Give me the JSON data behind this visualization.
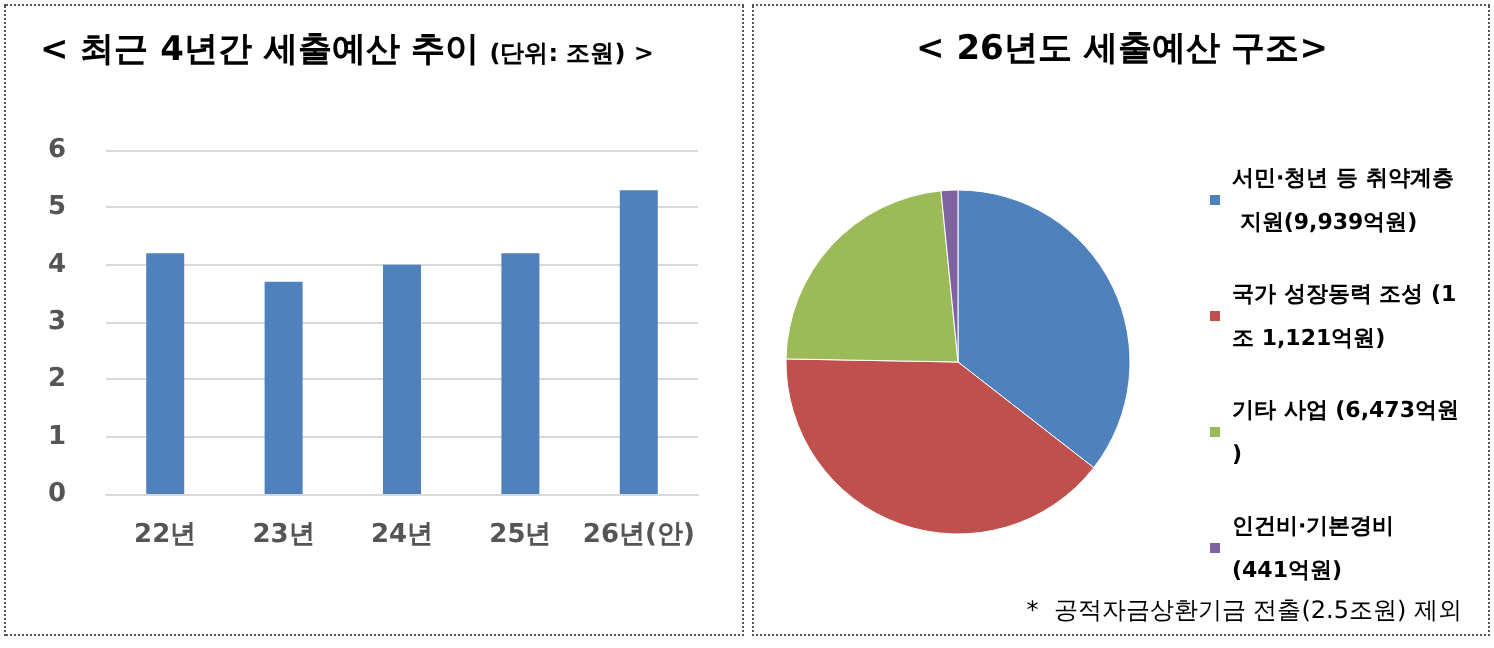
{
  "chart_data": [
    {
      "type": "bar",
      "title": "< 최근 4년간 세출예산 추이",
      "subtitle": "(단위: 조원) >",
      "categories": [
        "22년",
        "23년",
        "24년",
        "25년",
        "26년(안)"
      ],
      "values": [
        4.2,
        3.7,
        4.0,
        4.2,
        5.3
      ],
      "color": "#4f81bd",
      "ylim": [
        0,
        6
      ],
      "yticks": [
        0,
        1,
        2,
        3,
        4,
        5,
        6
      ],
      "grid": "y",
      "legend": false
    },
    {
      "type": "pie",
      "title": "< 26년도 세출예산 구조>",
      "categories": [
        "서민·청년 등 취약계층 지원(9,939억원)",
        "국가 성장동력 조성 (1조 1,121억원)",
        "기타 사업 (6,473억원)",
        "인건비·기본경비 (441억원)"
      ],
      "values": [
        9939,
        11121,
        6473,
        441
      ],
      "colors": [
        "#4f81bd",
        "#c0504d",
        "#9bbb59",
        "#8064a2"
      ],
      "legend": "right",
      "annotations": [
        "*  공적자금상환기금 전출(2.5조원) 제외"
      ]
    }
  ]
}
